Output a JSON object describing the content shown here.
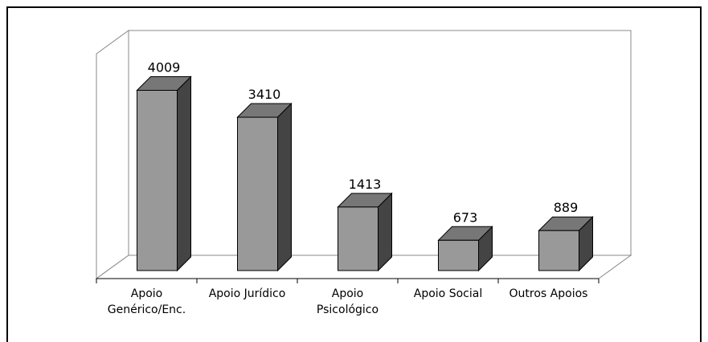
{
  "chart_data": {
    "type": "bar3d",
    "categories": [
      "Apoio Genérico/Enc.",
      "Apoio Jurídico",
      "Apoio Psicológico",
      "Apoio Social",
      "Outros Apoios"
    ],
    "values": [
      4009,
      3410,
      1413,
      673,
      889
    ],
    "color": "#999999",
    "side_color": "#444444",
    "top_color": "#777777",
    "ylim": [
      0,
      5000
    ]
  }
}
